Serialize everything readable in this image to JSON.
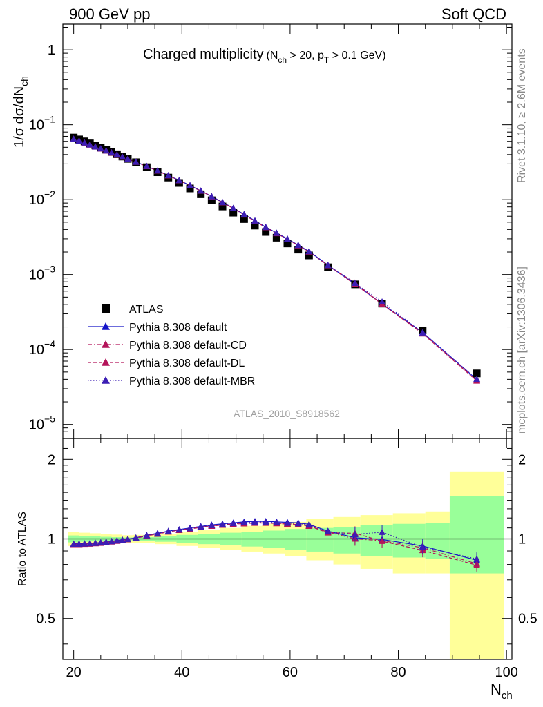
{
  "header": {
    "left": "900 GeV pp",
    "right": "Soft QCD"
  },
  "side_text": {
    "rivet": "Rivet 3.1.10, ≥ 2.6M events",
    "mcplots": "mcplots.cern.ch [arXiv:1306.3436]"
  },
  "plot_title": {
    "main": "Charged multiplicity",
    "detail_open": "(N",
    "detail_sub1": "ch",
    "detail_mid": " > 20, p",
    "detail_sub2": "T",
    "detail_end": " > 0.1 GeV)"
  },
  "watermark": "ATLAS_2010_S8918562",
  "axes": {
    "ylabel_prefix": "1/σ dσ/dN",
    "ylabel_sub": "ch",
    "xlabel_main": "N",
    "xlabel_sub": "ch",
    "ratio_ylabel": "Ratio to ATLAS",
    "xticks": [
      "20",
      "40",
      "60",
      "80",
      "100"
    ],
    "main_yticks": [
      {
        "base": "1",
        "exp": ""
      },
      {
        "base": "10",
        "exp": "−1"
      },
      {
        "base": "10",
        "exp": "−2"
      },
      {
        "base": "10",
        "exp": "−3"
      },
      {
        "base": "10",
        "exp": "−4"
      },
      {
        "base": "10",
        "exp": "−5"
      }
    ],
    "ratio_yticks": [
      "2",
      "1",
      "0.5"
    ]
  },
  "legend": [
    {
      "label": "ATLAS",
      "marker": "square",
      "color": "#000000",
      "line": "none"
    },
    {
      "label": "Pythia 8.308 default",
      "marker": "triangle",
      "color": "#1414c8",
      "line": "solid"
    },
    {
      "label": "Pythia 8.308 default-CD",
      "marker": "triangle",
      "color": "#b4145a",
      "line": "dashdot"
    },
    {
      "label": "Pythia 8.308 default-DL",
      "marker": "triangle",
      "color": "#b4145a",
      "line": "dashed"
    },
    {
      "label": "Pythia 8.308 default-MBR",
      "marker": "triangle",
      "color": "#3c1eb4",
      "line": "dotted"
    }
  ],
  "chart_data": {
    "type": "scatter",
    "xlim": [
      18,
      101
    ],
    "main_ylim": [
      6.5e-06,
      2.2
    ],
    "main_yscale": "log",
    "ratio_ylim": [
      0.35,
      2.4
    ],
    "ratio_yscale": "log",
    "atlas": {
      "x": [
        20,
        21,
        22,
        23,
        24,
        25,
        26,
        27,
        28,
        29,
        30,
        31.5,
        33.5,
        35.5,
        37.5,
        39.5,
        41.5,
        43.5,
        45.5,
        47.5,
        49.5,
        51.5,
        53.5,
        55.5,
        57.5,
        59.5,
        61.5,
        63.5,
        67,
        72,
        77,
        84.5,
        94.5
      ],
      "y": [
        0.0675,
        0.0637,
        0.06,
        0.0564,
        0.0529,
        0.0496,
        0.0464,
        0.0433,
        0.0404,
        0.0376,
        0.035,
        0.0316,
        0.0271,
        0.0232,
        0.0197,
        0.0167,
        0.0141,
        0.0118,
        0.0098,
        0.0081,
        0.0067,
        0.0055,
        0.0045,
        0.0037,
        0.0031,
        0.0026,
        0.00215,
        0.0018,
        0.00125,
        0.00074,
        0.00041,
        0.00018,
        4.8e-05
      ]
    },
    "series": [
      {
        "name": "Pythia 8.308 default",
        "color": "#1414c8",
        "line": "solid",
        "ratio": [
          0.958,
          0.958,
          0.96,
          0.962,
          0.965,
          0.969,
          0.974,
          0.98,
          0.986,
          0.992,
          0.998,
          1.01,
          1.032,
          1.05,
          1.07,
          1.085,
          1.1,
          1.115,
          1.13,
          1.14,
          1.15,
          1.16,
          1.165,
          1.165,
          1.16,
          1.155,
          1.15,
          1.135,
          1.07,
          1.01,
          0.995,
          0.94,
          0.83
        ]
      },
      {
        "name": "Pythia 8.308 default-CD",
        "color": "#b4145a",
        "line": "dashdot",
        "ratio": [
          0.955,
          0.955,
          0.957,
          0.959,
          0.962,
          0.966,
          0.971,
          0.977,
          0.983,
          0.989,
          0.995,
          1.007,
          1.028,
          1.045,
          1.065,
          1.08,
          1.093,
          1.108,
          1.12,
          1.13,
          1.14,
          1.145,
          1.15,
          1.15,
          1.145,
          1.14,
          1.135,
          1.12,
          1.06,
          1.0,
          0.985,
          0.925,
          0.805
        ]
      },
      {
        "name": "Pythia 8.308 default-DL",
        "color": "#b4145a",
        "line": "dashed",
        "ratio": [
          0.953,
          0.953,
          0.955,
          0.957,
          0.96,
          0.964,
          0.969,
          0.975,
          0.981,
          0.987,
          0.994,
          1.006,
          1.026,
          1.043,
          1.063,
          1.078,
          1.09,
          1.105,
          1.118,
          1.128,
          1.138,
          1.142,
          1.148,
          1.148,
          1.143,
          1.138,
          1.133,
          1.118,
          1.055,
          1.05,
          0.98,
          0.905,
          0.795
        ]
      },
      {
        "name": "Pythia 8.308 default-MBR",
        "color": "#3c1eb4",
        "line": "dotted",
        "ratio": [
          0.956,
          0.956,
          0.958,
          0.96,
          0.963,
          0.967,
          0.972,
          0.978,
          0.984,
          0.99,
          0.996,
          1.008,
          1.03,
          1.048,
          1.068,
          1.083,
          1.096,
          1.111,
          1.125,
          1.135,
          1.145,
          1.152,
          1.158,
          1.158,
          1.153,
          1.148,
          1.143,
          1.13,
          1.065,
          1.04,
          1.06,
          0.93,
          0.84
        ]
      }
    ],
    "uncertainty_bins": [
      {
        "x0": 19,
        "x1": 21,
        "inner": [
          0.97,
          1.03
        ],
        "outer": [
          0.94,
          1.06
        ]
      },
      {
        "x0": 21,
        "x1": 23,
        "inner": [
          0.975,
          1.025
        ],
        "outer": [
          0.945,
          1.055
        ]
      },
      {
        "x0": 23,
        "x1": 25,
        "inner": [
          0.978,
          1.022
        ],
        "outer": [
          0.95,
          1.05
        ]
      },
      {
        "x0": 25,
        "x1": 27,
        "inner": [
          0.982,
          1.018
        ],
        "outer": [
          0.955,
          1.045
        ]
      },
      {
        "x0": 27,
        "x1": 29,
        "inner": [
          0.985,
          1.015
        ],
        "outer": [
          0.962,
          1.038
        ]
      },
      {
        "x0": 29,
        "x1": 31,
        "inner": [
          0.988,
          1.012
        ],
        "outer": [
          0.968,
          1.032
        ]
      },
      {
        "x0": 31,
        "x1": 35,
        "inner": [
          0.985,
          1.015
        ],
        "outer": [
          0.965,
          1.035
        ]
      },
      {
        "x0": 35,
        "x1": 39,
        "inner": [
          0.975,
          1.025
        ],
        "outer": [
          0.955,
          1.045
        ]
      },
      {
        "x0": 39,
        "x1": 43,
        "inner": [
          0.965,
          1.035
        ],
        "outer": [
          0.94,
          1.06
        ]
      },
      {
        "x0": 43,
        "x1": 47,
        "inner": [
          0.955,
          1.045
        ],
        "outer": [
          0.925,
          1.08
        ]
      },
      {
        "x0": 47,
        "x1": 51,
        "inner": [
          0.945,
          1.055
        ],
        "outer": [
          0.91,
          1.1
        ]
      },
      {
        "x0": 51,
        "x1": 55,
        "inner": [
          0.935,
          1.065
        ],
        "outer": [
          0.895,
          1.12
        ]
      },
      {
        "x0": 55,
        "x1": 59,
        "inner": [
          0.925,
          1.075
        ],
        "outer": [
          0.88,
          1.14
        ]
      },
      {
        "x0": 59,
        "x1": 63,
        "inner": [
          0.91,
          1.09
        ],
        "outer": [
          0.86,
          1.16
        ]
      },
      {
        "x0": 63,
        "x1": 68,
        "inner": [
          0.895,
          1.1
        ],
        "outer": [
          0.83,
          1.19
        ]
      },
      {
        "x0": 68,
        "x1": 73,
        "inner": [
          0.88,
          1.11
        ],
        "outer": [
          0.8,
          1.21
        ]
      },
      {
        "x0": 73,
        "x1": 79,
        "inner": [
          0.86,
          1.13
        ],
        "outer": [
          0.77,
          1.23
        ]
      },
      {
        "x0": 79,
        "x1": 85,
        "inner": [
          0.85,
          1.14
        ],
        "outer": [
          0.74,
          1.25
        ]
      },
      {
        "x0": 85,
        "x1": 89.5,
        "inner": [
          0.84,
          1.15
        ],
        "outer": [
          0.74,
          1.27
        ]
      },
      {
        "x0": 89.5,
        "x1": 99.5,
        "inner": [
          0.74,
          1.45
        ],
        "outer": [
          0.35,
          1.8
        ]
      }
    ]
  }
}
